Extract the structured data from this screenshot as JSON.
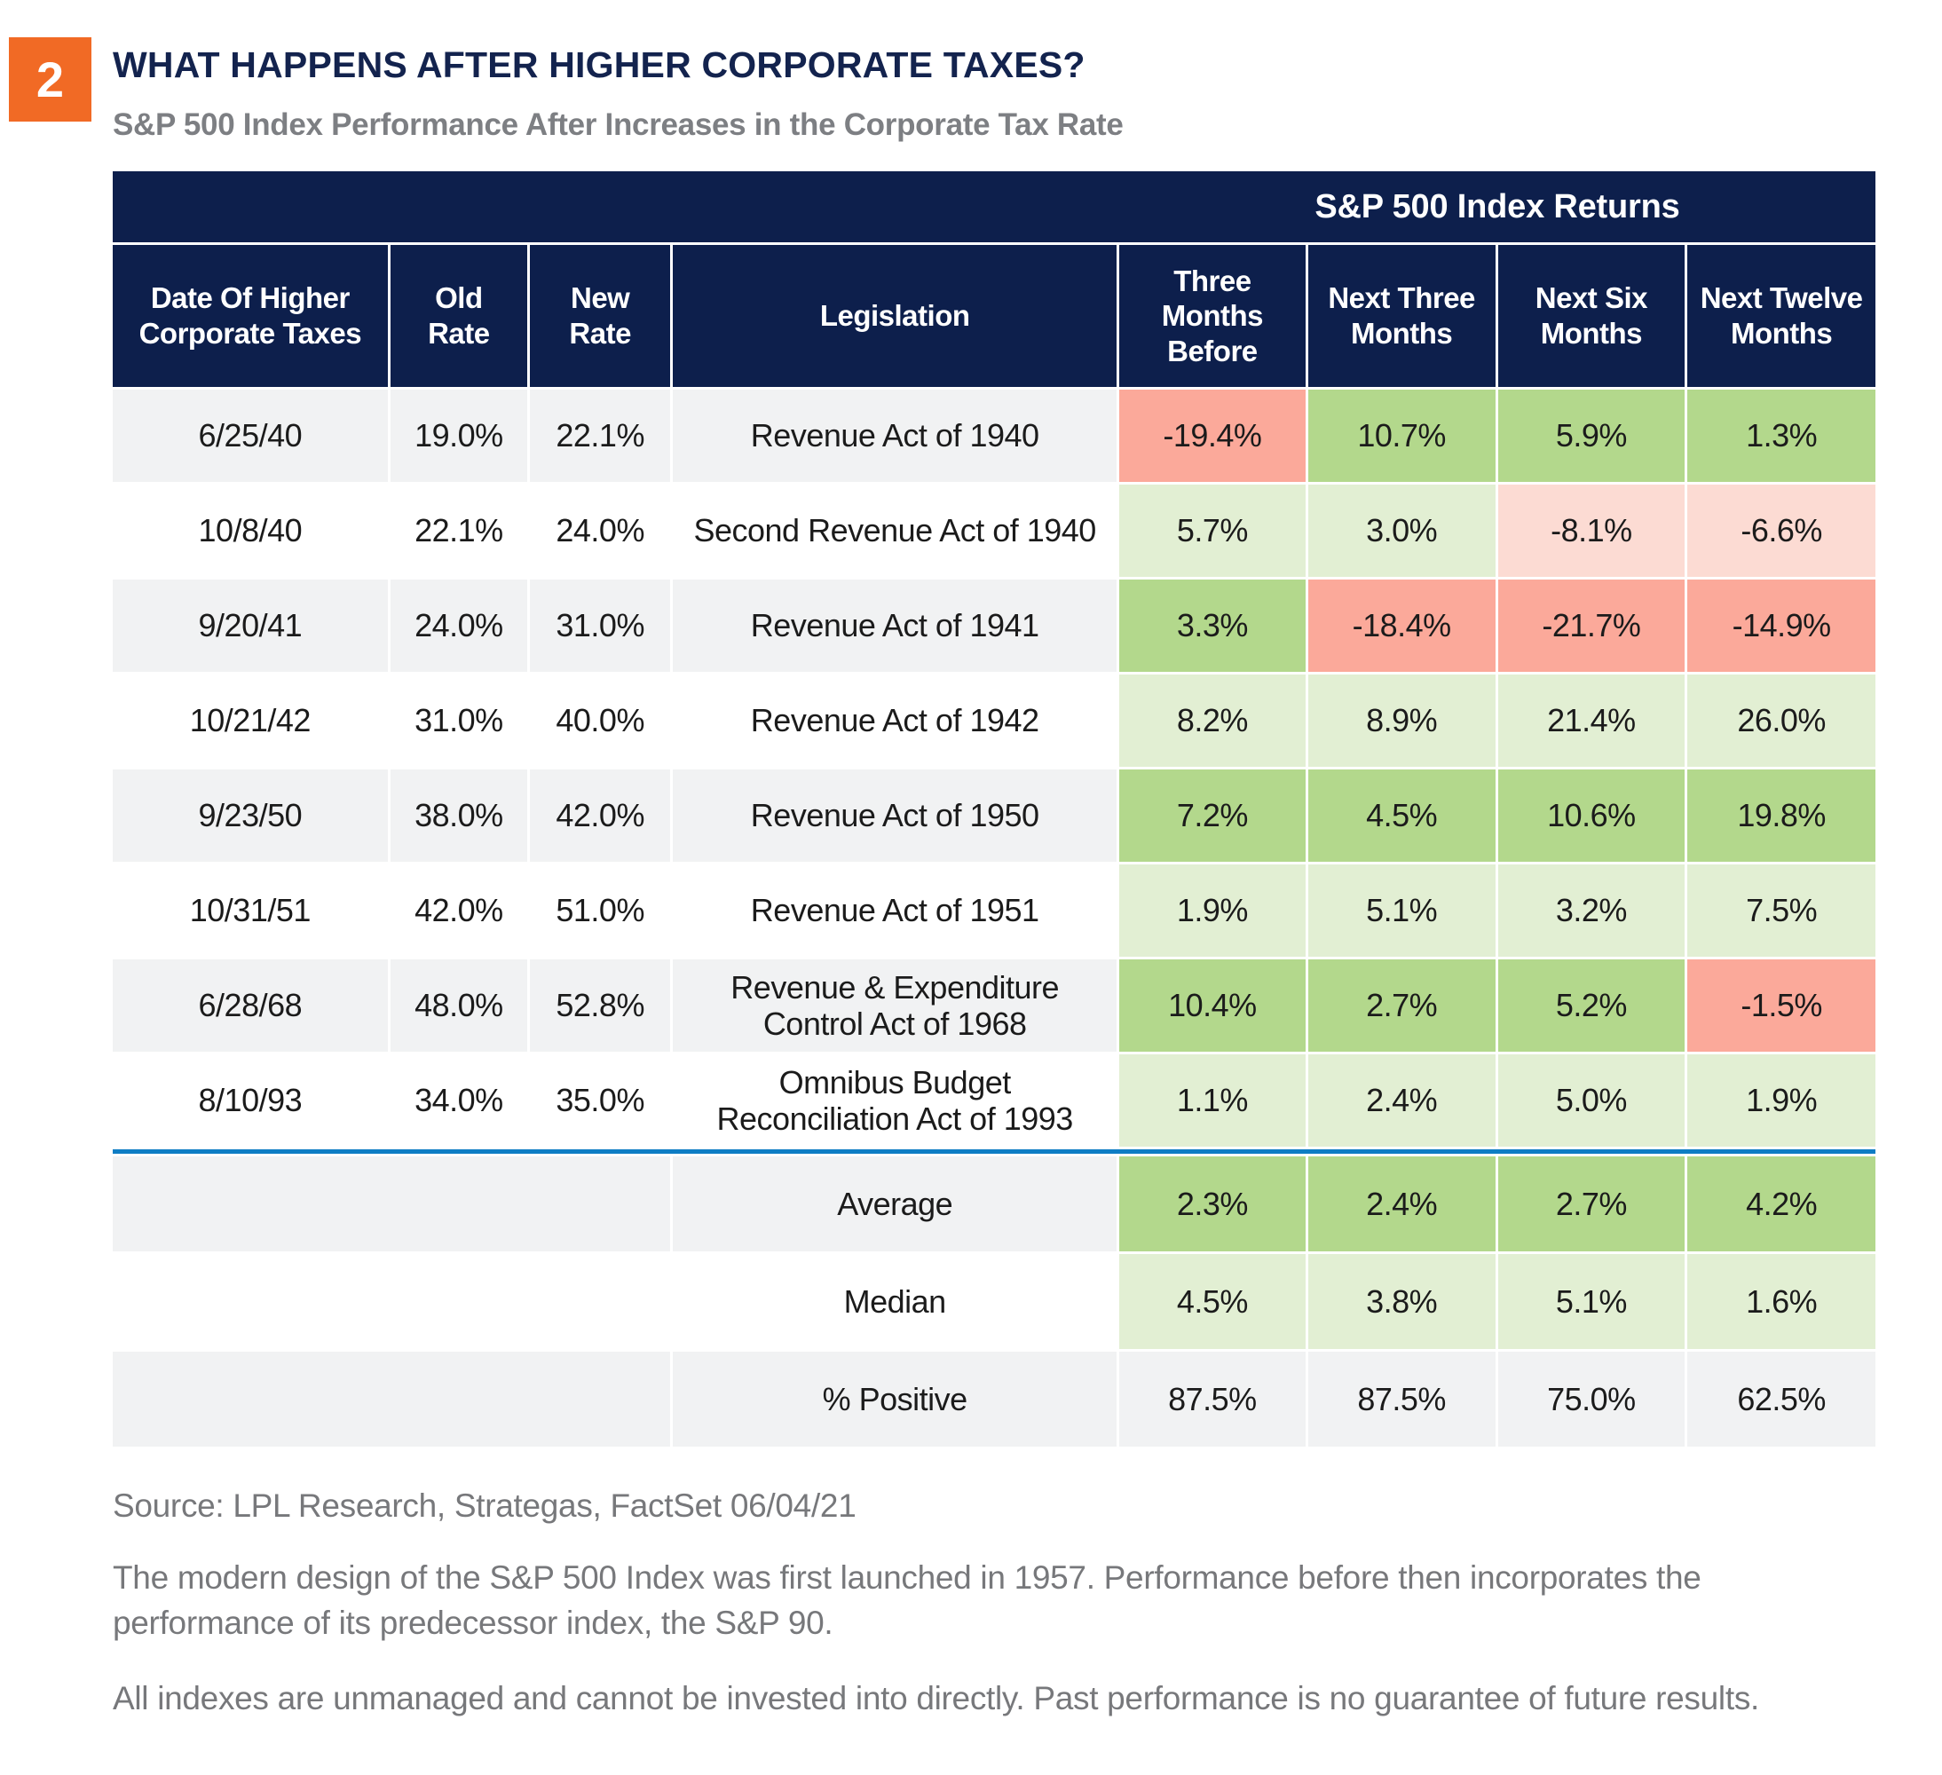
{
  "badge": {
    "number": "2"
  },
  "header": {
    "title": "WHAT HAPPENS AFTER HIGHER CORPORATE TAXES?",
    "subtitle": "S&P 500 Index Performance After Increases in the Corporate Tax Rate"
  },
  "table": {
    "returns_group_header": "S&P 500 Index Returns",
    "columns": [
      "Date Of Higher Corporate Taxes",
      "Old Rate",
      "New Rate",
      "Legislation",
      "Three Months Before",
      "Next Three Months",
      "Next Six Months",
      "Next Twelve Months"
    ],
    "rows": [
      {
        "date": "6/25/40",
        "old_rate": "19.0%",
        "new_rate": "22.1%",
        "legislation": "Revenue Act of 1940",
        "returns": [
          "-19.4%",
          "10.7%",
          "5.9%",
          "1.3%"
        ]
      },
      {
        "date": "10/8/40",
        "old_rate": "22.1%",
        "new_rate": "24.0%",
        "legislation": "Second Revenue Act of 1940",
        "returns": [
          "5.7%",
          "3.0%",
          "-8.1%",
          "-6.6%"
        ]
      },
      {
        "date": "9/20/41",
        "old_rate": "24.0%",
        "new_rate": "31.0%",
        "legislation": "Revenue Act of 1941",
        "returns": [
          "3.3%",
          "-18.4%",
          "-21.7%",
          "-14.9%"
        ]
      },
      {
        "date": "10/21/42",
        "old_rate": "31.0%",
        "new_rate": "40.0%",
        "legislation": "Revenue Act of 1942",
        "returns": [
          "8.2%",
          "8.9%",
          "21.4%",
          "26.0%"
        ]
      },
      {
        "date": "9/23/50",
        "old_rate": "38.0%",
        "new_rate": "42.0%",
        "legislation": "Revenue Act of 1950",
        "returns": [
          "7.2%",
          "4.5%",
          "10.6%",
          "19.8%"
        ]
      },
      {
        "date": "10/31/51",
        "old_rate": "42.0%",
        "new_rate": "51.0%",
        "legislation": "Revenue Act of 1951",
        "returns": [
          "1.9%",
          "5.1%",
          "3.2%",
          "7.5%"
        ]
      },
      {
        "date": "6/28/68",
        "old_rate": "48.0%",
        "new_rate": "52.8%",
        "legislation": "Revenue & Expenditure Control Act of 1968",
        "returns": [
          "10.4%",
          "2.7%",
          "5.2%",
          "-1.5%"
        ]
      },
      {
        "date": "8/10/93",
        "old_rate": "34.0%",
        "new_rate": "35.0%",
        "legislation": "Omnibus Budget Reconciliation Act of 1993",
        "returns": [
          "1.1%",
          "2.4%",
          "5.0%",
          "1.9%"
        ]
      }
    ],
    "summary": [
      {
        "label": "Average",
        "values": [
          "2.3%",
          "2.4%",
          "2.7%",
          "4.2%"
        ],
        "tone": "strong"
      },
      {
        "label": "Median",
        "values": [
          "4.5%",
          "3.8%",
          "5.1%",
          "1.6%"
        ],
        "tone": "light"
      },
      {
        "label": "% Positive",
        "values": [
          "87.5%",
          "87.5%",
          "75.0%",
          "62.5%"
        ],
        "tone": "none"
      }
    ]
  },
  "footer": {
    "source": "Source: LPL Research, Strategas, FactSet 06/04/21",
    "note1_line1": "The modern design of the S&P 500 Index was first launched in 1957. Performance before then incorporates the",
    "note1_line2": "performance of its predecessor index, the S&P 90.",
    "note2": "All indexes are unmanaged and cannot be invested into directly. Past performance is no guarantee of future results."
  },
  "colors": {
    "navy": "#0d1f4c",
    "orange": "#f16a25",
    "blue_divider": "#0e7dc4",
    "green_strong": "#b3d88c",
    "green_light": "#e2efd3",
    "red_strong": "#fba99a",
    "red_light": "#fcdbd3",
    "stripe_gray": "#f1f2f3",
    "white": "#ffffff"
  },
  "chart_data": {
    "type": "table",
    "title": "WHAT HAPPENS AFTER HIGHER CORPORATE TAXES?",
    "subtitle": "S&P 500 Index Performance After Increases in the Corporate Tax Rate",
    "group_header": "S&P 500 Index Returns (last four columns)",
    "columns": [
      "Date Of Higher Corporate Taxes",
      "Old Rate",
      "New Rate",
      "Legislation",
      "Three Months Before",
      "Next Three Months",
      "Next Six Months",
      "Next Twelve Months"
    ],
    "rows": [
      [
        "6/25/40",
        "19.0%",
        "22.1%",
        "Revenue Act of 1940",
        "-19.4%",
        "10.7%",
        "5.9%",
        "1.3%"
      ],
      [
        "10/8/40",
        "22.1%",
        "24.0%",
        "Second Revenue Act of 1940",
        "5.7%",
        "3.0%",
        "-8.1%",
        "-6.6%"
      ],
      [
        "9/20/41",
        "24.0%",
        "31.0%",
        "Revenue Act of 1941",
        "3.3%",
        "-18.4%",
        "-21.7%",
        "-14.9%"
      ],
      [
        "10/21/42",
        "31.0%",
        "40.0%",
        "Revenue Act of 1942",
        "8.2%",
        "8.9%",
        "21.4%",
        "26.0%"
      ],
      [
        "9/23/50",
        "38.0%",
        "42.0%",
        "Revenue Act of 1950",
        "7.2%",
        "4.5%",
        "10.6%",
        "19.8%"
      ],
      [
        "10/31/51",
        "42.0%",
        "51.0%",
        "Revenue Act of 1951",
        "1.9%",
        "5.1%",
        "3.2%",
        "7.5%"
      ],
      [
        "6/28/68",
        "48.0%",
        "52.8%",
        "Revenue & Expenditure Control Act of 1968",
        "10.4%",
        "2.7%",
        "5.2%",
        "-1.5%"
      ],
      [
        "8/10/93",
        "34.0%",
        "35.0%",
        "Omnibus Budget Reconciliation Act of 1993",
        "1.1%",
        "2.4%",
        "5.0%",
        "1.9%"
      ]
    ],
    "summary_rows": [
      [
        "Average",
        "2.3%",
        "2.4%",
        "2.7%",
        "4.2%"
      ],
      [
        "Median",
        "4.5%",
        "3.8%",
        "5.1%",
        "1.6%"
      ],
      [
        "% Positive",
        "87.5%",
        "87.5%",
        "75.0%",
        "62.5%"
      ]
    ],
    "color_coding": "return cells: green = positive, red/salmon = negative; saturated shades on gray-striped rows, pale shades on white rows"
  }
}
